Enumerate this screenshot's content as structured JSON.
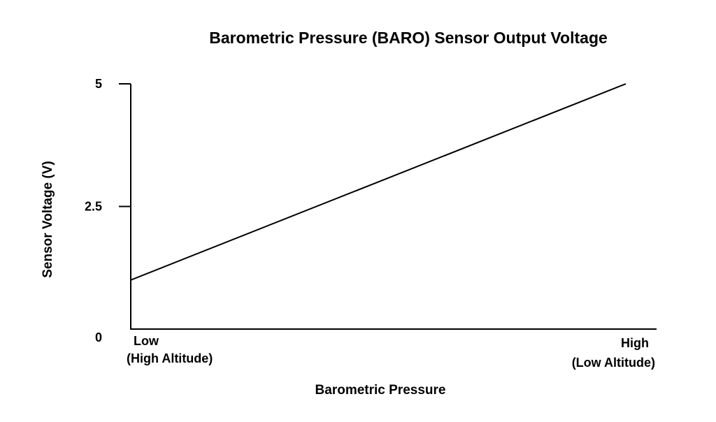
{
  "chart_data": {
    "type": "line",
    "title": "Barometric Pressure (BARO) Sensor Output Voltage",
    "xlabel": "Barometric Pressure",
    "ylabel": "Sensor Voltage (V)",
    "x_categories": [
      "Low",
      "High"
    ],
    "x_tick_labels": [
      {
        "line1": "Low",
        "line2": "(High Altitude)"
      },
      {
        "line1": "High",
        "line2": "(Low Altitude)"
      }
    ],
    "y_ticks": [
      "0",
      "2.5",
      "5"
    ],
    "y_tick_values": [
      0,
      2.5,
      5
    ],
    "ylim": [
      0,
      5
    ],
    "series": [
      {
        "points": [
          {
            "x": "Low",
            "y": 1.0
          },
          {
            "x": "High",
            "y": 5.0
          }
        ]
      }
    ],
    "grid": false,
    "legend": "none",
    "line_color": "#000000"
  }
}
